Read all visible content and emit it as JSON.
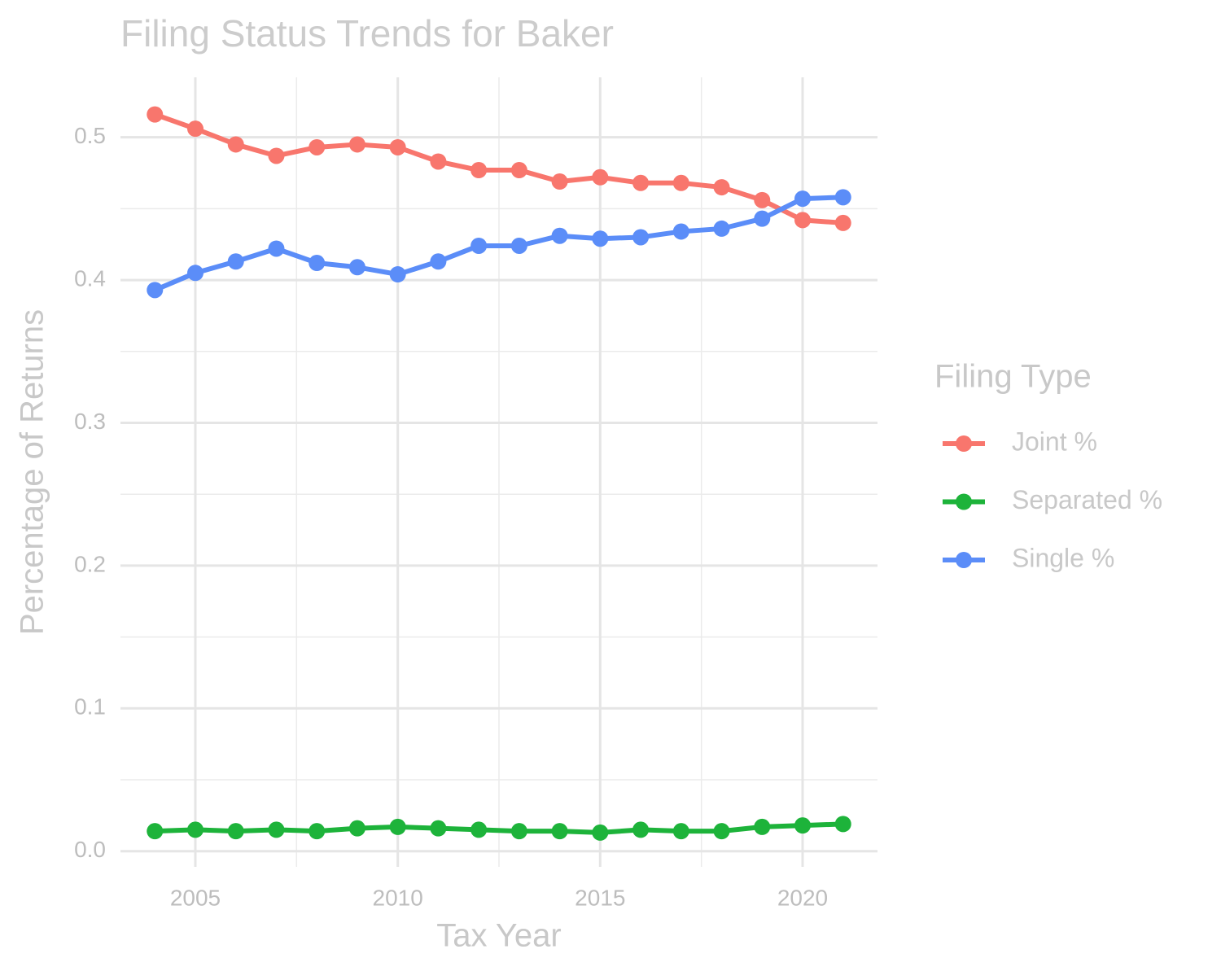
{
  "chart_data": {
    "type": "line",
    "title": "Filing Status Trends for Baker",
    "x_label": "Tax Year",
    "y_label": "Percentage of Returns",
    "legend_title": "Filing Type",
    "legend_position": "right",
    "grid": true,
    "minor_grid": true,
    "x": [
      2004,
      2005,
      2006,
      2007,
      2008,
      2009,
      2010,
      2011,
      2012,
      2013,
      2014,
      2015,
      2016,
      2017,
      2018,
      2019,
      2020,
      2021
    ],
    "series": [
      {
        "name": "Joint %",
        "color": "#F8766D",
        "values": [
          0.516,
          0.506,
          0.495,
          0.487,
          0.493,
          0.495,
          0.493,
          0.483,
          0.477,
          0.477,
          0.469,
          0.472,
          0.468,
          0.468,
          0.465,
          0.456,
          0.442,
          0.44
        ]
      },
      {
        "name": "Separated %",
        "color": "#1DB33A",
        "values": [
          0.014,
          0.015,
          0.014,
          0.015,
          0.014,
          0.016,
          0.017,
          0.016,
          0.015,
          0.014,
          0.014,
          0.013,
          0.015,
          0.014,
          0.014,
          0.017,
          0.018,
          0.019
        ]
      },
      {
        "name": "Single %",
        "color": "#5B8DF8",
        "values": [
          0.393,
          0.405,
          0.413,
          0.422,
          0.412,
          0.409,
          0.404,
          0.413,
          0.424,
          0.424,
          0.431,
          0.429,
          0.43,
          0.434,
          0.436,
          0.443,
          0.457,
          0.458
        ]
      }
    ],
    "xlim": [
      2003.15,
      2021.85
    ],
    "xticks": [
      2005,
      2010,
      2015,
      2020
    ],
    "ylim": [
      -0.011,
      0.542
    ],
    "yticks": [
      {
        "value": 0,
        "label": "0.0"
      },
      0.1,
      0.2,
      0.3,
      0.4,
      0.5
    ]
  }
}
